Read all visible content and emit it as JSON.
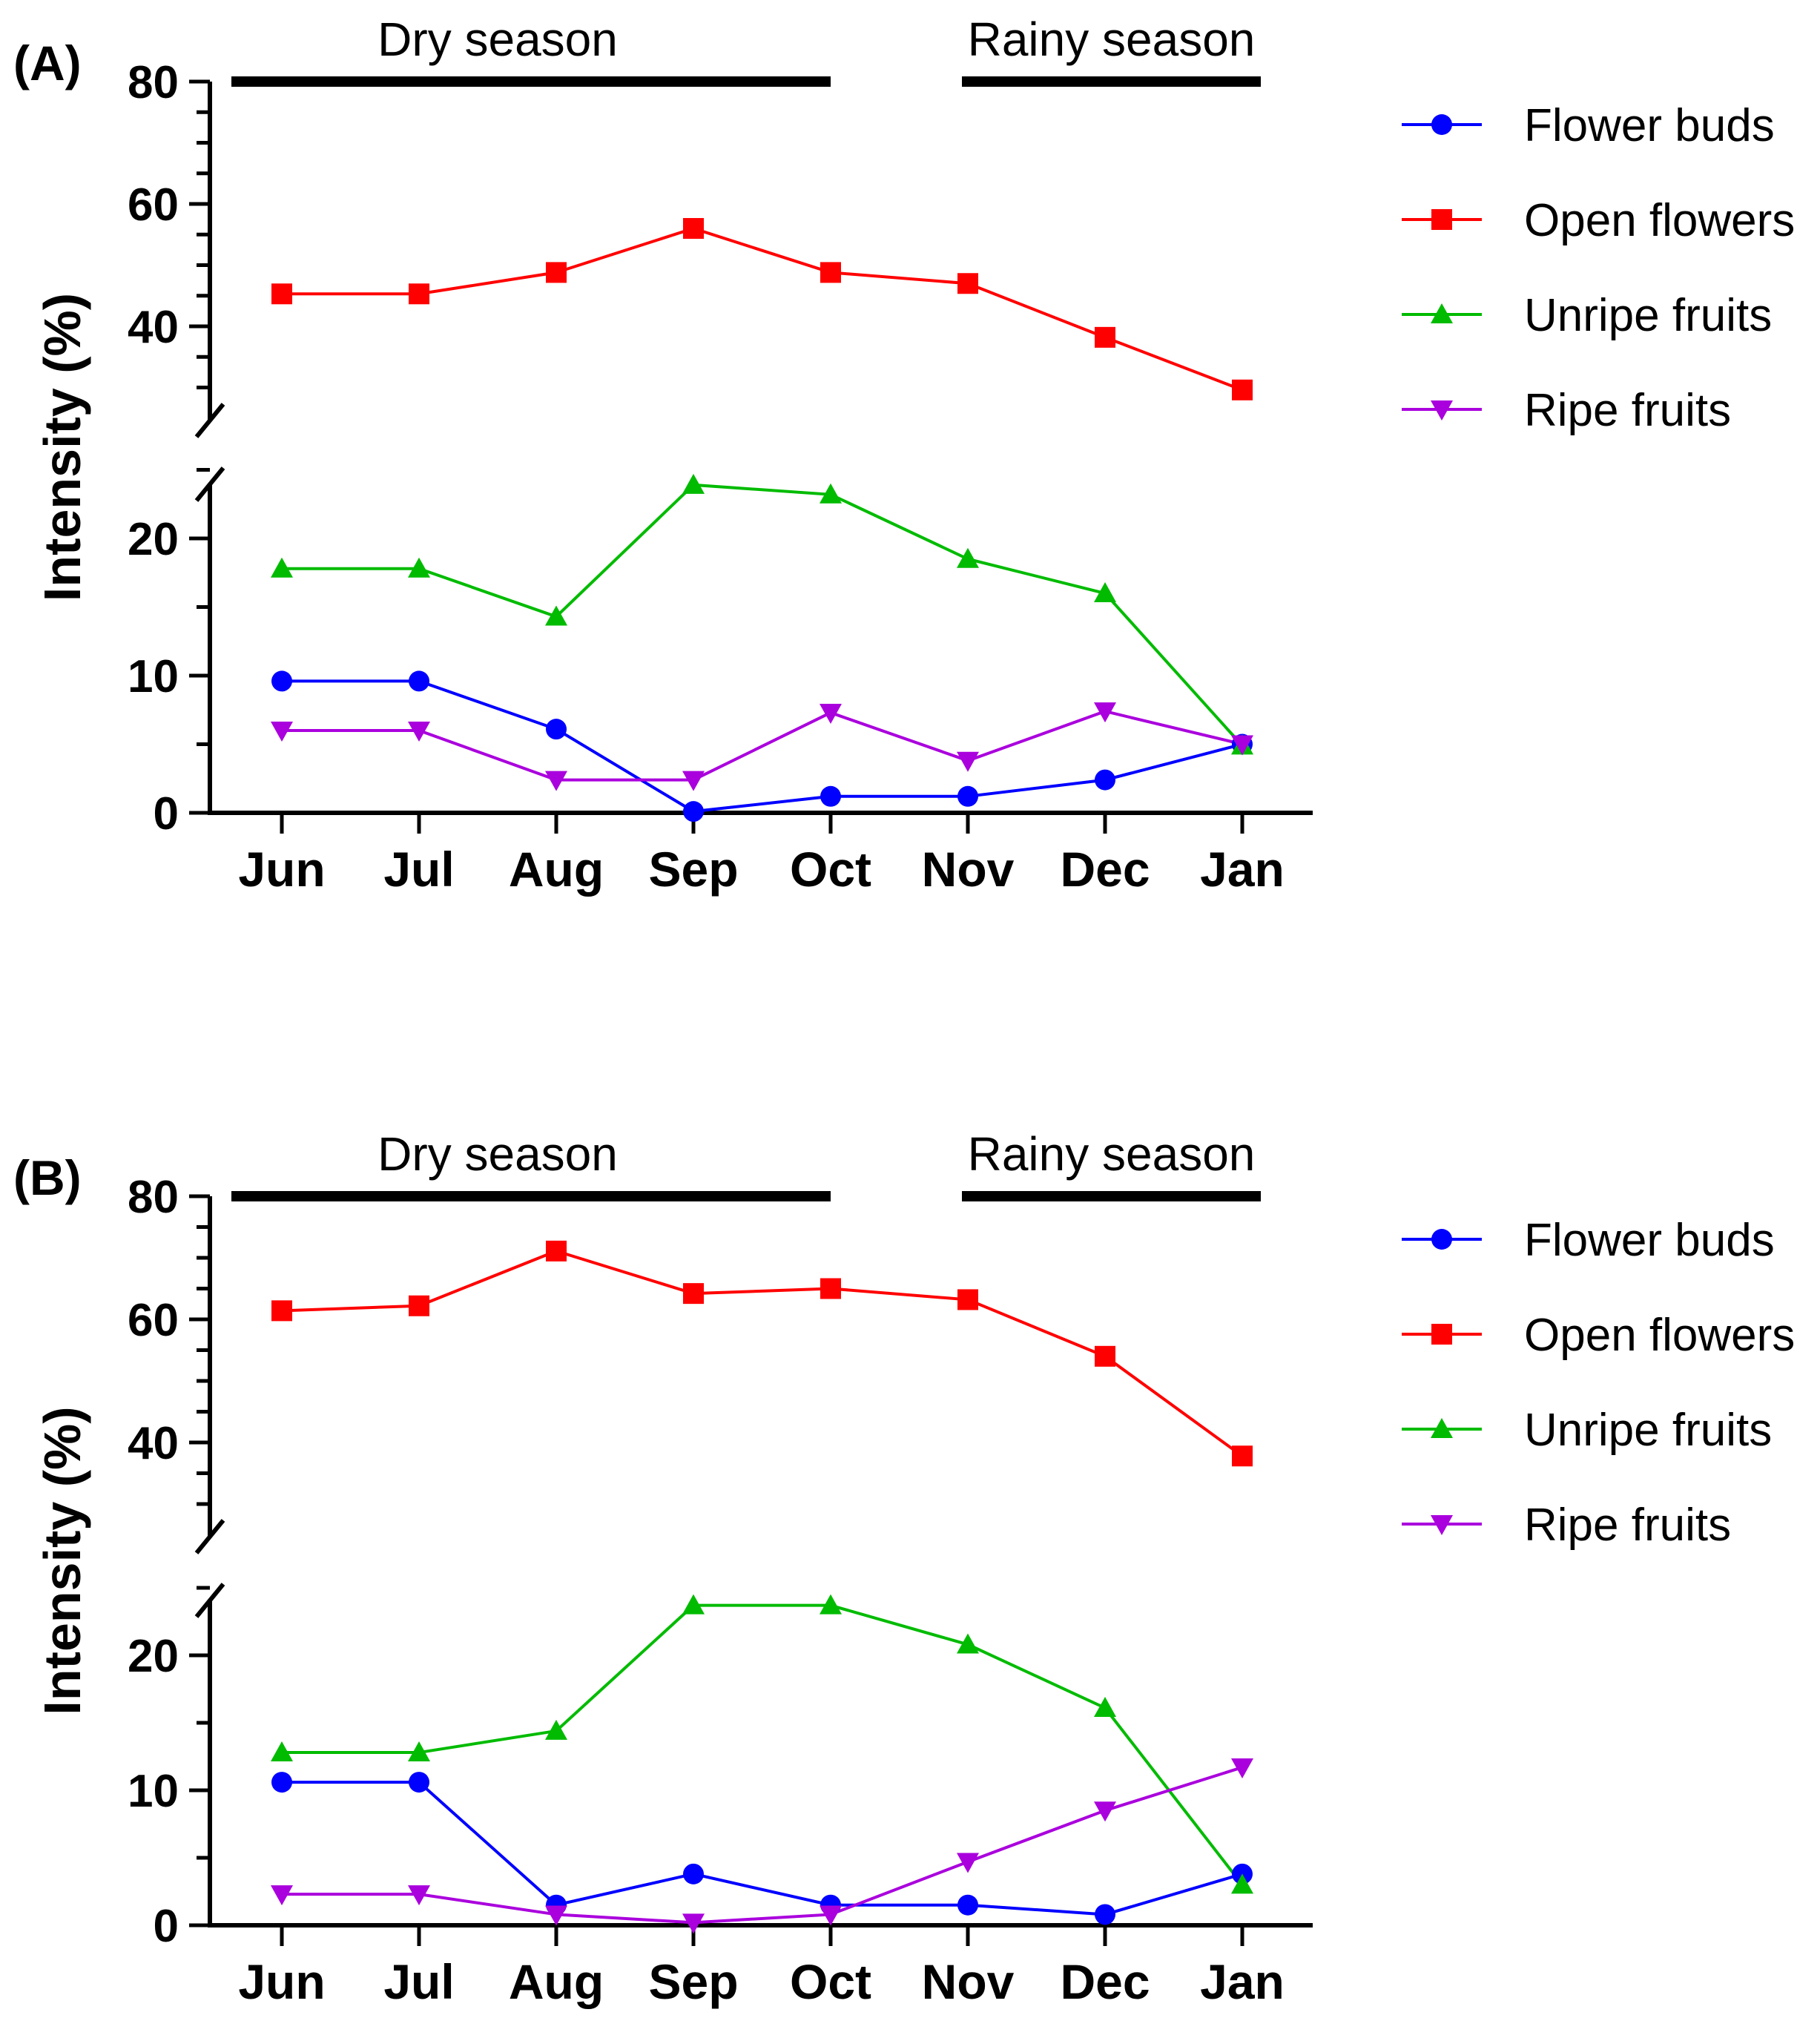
{
  "chart_data": [
    {
      "type": "line",
      "panel_label": "(A)",
      "ylabel": "Intensity (%)",
      "xlabel": "",
      "categories": [
        "Jun",
        "Jul",
        "Aug",
        "Sep",
        "Oct",
        "Nov",
        "Dec",
        "Jan"
      ],
      "y_axis_broken": true,
      "y_segments": [
        {
          "range": [
            0,
            25
          ],
          "ticks": [
            0,
            10,
            20
          ]
        },
        {
          "range": [
            25,
            80
          ],
          "ticks": [
            40,
            60,
            80
          ]
        }
      ],
      "season_bars": [
        {
          "label": "Dry season",
          "from": "Jun",
          "to": "Oct"
        },
        {
          "label": "Rainy season",
          "from": "Nov",
          "to": "Jan"
        }
      ],
      "legend_position": "right",
      "series": [
        {
          "name": "Flower buds",
          "color": "#0000ff",
          "marker": "circle",
          "values": [
            9.6,
            9.6,
            6.1,
            0.1,
            1.2,
            1.2,
            2.4,
            5.0
          ]
        },
        {
          "name": "Open flowers",
          "color": "#ff0000",
          "marker": "square",
          "values": [
            45.3,
            45.3,
            48.8,
            56.0,
            48.8,
            47.0,
            38.2,
            29.6
          ]
        },
        {
          "name": "Unripe fruits",
          "color": "#00bb00",
          "marker": "triangle-up",
          "values": [
            17.8,
            17.8,
            14.3,
            23.9,
            23.2,
            18.5,
            16.0,
            4.9
          ]
        },
        {
          "name": "Ripe fruits",
          "color": "#aa00dd",
          "marker": "triangle-down",
          "values": [
            6.0,
            6.0,
            2.4,
            2.4,
            7.3,
            3.8,
            7.4,
            5.0
          ]
        }
      ]
    },
    {
      "type": "line",
      "panel_label": "(B)",
      "ylabel": "Intensity (%)",
      "xlabel": "",
      "categories": [
        "Jun",
        "Jul",
        "Aug",
        "Sep",
        "Oct",
        "Nov",
        "Dec",
        "Jan"
      ],
      "y_axis_broken": true,
      "y_segments": [
        {
          "range": [
            0,
            25
          ],
          "ticks": [
            0,
            10,
            20
          ]
        },
        {
          "range": [
            25,
            80
          ],
          "ticks": [
            40,
            60,
            80
          ]
        }
      ],
      "season_bars": [
        {
          "label": "Dry season",
          "from": "Jun",
          "to": "Oct"
        },
        {
          "label": "Rainy season",
          "from": "Nov",
          "to": "Jan"
        }
      ],
      "legend_position": "right",
      "series": [
        {
          "name": "Flower buds",
          "color": "#0000ff",
          "marker": "circle",
          "values": [
            10.6,
            10.6,
            1.5,
            3.8,
            1.5,
            1.5,
            0.8,
            3.8
          ]
        },
        {
          "name": "Open flowers",
          "color": "#ff0000",
          "marker": "square",
          "values": [
            61.4,
            62.2,
            71.1,
            64.2,
            65.0,
            63.2,
            54.0,
            37.8
          ]
        },
        {
          "name": "Unripe fruits",
          "color": "#00bb00",
          "marker": "triangle-up",
          "values": [
            12.8,
            12.8,
            14.4,
            23.7,
            23.7,
            20.8,
            16.1,
            3.0
          ]
        },
        {
          "name": "Ripe fruits",
          "color": "#aa00dd",
          "marker": "triangle-down",
          "values": [
            2.3,
            2.3,
            0.8,
            0.2,
            0.8,
            4.7,
            8.5,
            11.7
          ]
        }
      ]
    }
  ]
}
